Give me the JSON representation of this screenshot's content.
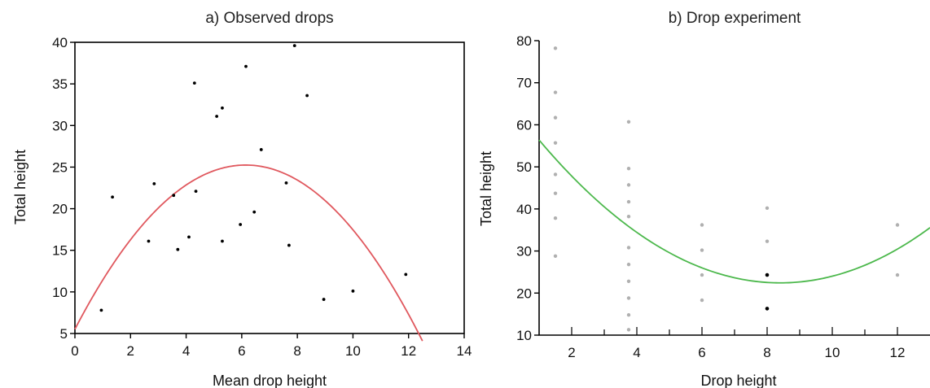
{
  "chart_data": [
    {
      "type": "scatter",
      "title": "a) Observed drops",
      "xlabel": "Mean drop height",
      "ylabel": "Total height",
      "xlim": [
        0,
        14
      ],
      "ylim": [
        5,
        40
      ],
      "xticks": [
        0,
        2,
        4,
        6,
        8,
        10,
        12,
        14
      ],
      "yticks": [
        5,
        10,
        15,
        20,
        25,
        30,
        35,
        40
      ],
      "grid": false,
      "point_color": "#000000",
      "points": [
        {
          "x": 0.95,
          "y": 7.8
        },
        {
          "x": 1.35,
          "y": 21.4
        },
        {
          "x": 2.65,
          "y": 16.1
        },
        {
          "x": 2.85,
          "y": 23.0
        },
        {
          "x": 3.55,
          "y": 21.6
        },
        {
          "x": 3.7,
          "y": 15.1
        },
        {
          "x": 4.1,
          "y": 16.6
        },
        {
          "x": 4.3,
          "y": 35.1
        },
        {
          "x": 4.35,
          "y": 22.1
        },
        {
          "x": 5.1,
          "y": 31.1
        },
        {
          "x": 5.3,
          "y": 32.1
        },
        {
          "x": 5.3,
          "y": 16.1
        },
        {
          "x": 5.95,
          "y": 18.1
        },
        {
          "x": 6.15,
          "y": 37.1
        },
        {
          "x": 6.45,
          "y": 19.6
        },
        {
          "x": 6.7,
          "y": 27.1
        },
        {
          "x": 7.6,
          "y": 23.1
        },
        {
          "x": 7.7,
          "y": 15.6
        },
        {
          "x": 7.9,
          "y": 39.6
        },
        {
          "x": 8.35,
          "y": 33.6
        },
        {
          "x": 8.95,
          "y": 9.1
        },
        {
          "x": 10.0,
          "y": 10.1
        },
        {
          "x": 11.9,
          "y": 12.1
        }
      ],
      "curve": {
        "color": "#e0585e",
        "quadratic": {
          "a": -0.523,
          "b": 6.424,
          "c": 5.52
        },
        "x_range": [
          0,
          12.5
        ]
      }
    },
    {
      "type": "scatter",
      "title": "b) Drop experiment",
      "xlabel": "Drop height",
      "ylabel": "Total height",
      "xlim": [
        1,
        13
      ],
      "ylim": [
        10,
        80
      ],
      "xticks": [
        2,
        4,
        6,
        8,
        10,
        12
      ],
      "yticks": [
        10,
        20,
        30,
        40,
        50,
        60,
        70,
        80
      ],
      "grid": true,
      "point_color": "#b0b0b0",
      "dark_point_color": "#000000",
      "points": [
        {
          "x": 1.5,
          "y": 78.2
        },
        {
          "x": 1.5,
          "y": 67.7
        },
        {
          "x": 1.5,
          "y": 61.7
        },
        {
          "x": 1.5,
          "y": 55.7
        },
        {
          "x": 1.5,
          "y": 48.2
        },
        {
          "x": 1.5,
          "y": 43.7
        },
        {
          "x": 1.5,
          "y": 37.8
        },
        {
          "x": 1.5,
          "y": 28.8
        },
        {
          "x": 3.75,
          "y": 60.7
        },
        {
          "x": 3.75,
          "y": 49.6
        },
        {
          "x": 3.75,
          "y": 45.7
        },
        {
          "x": 3.75,
          "y": 41.7
        },
        {
          "x": 3.75,
          "y": 38.2
        },
        {
          "x": 3.75,
          "y": 30.8
        },
        {
          "x": 3.75,
          "y": 26.8
        },
        {
          "x": 3.75,
          "y": 22.8
        },
        {
          "x": 3.75,
          "y": 18.8
        },
        {
          "x": 3.75,
          "y": 14.8
        },
        {
          "x": 3.75,
          "y": 11.3
        },
        {
          "x": 6,
          "y": 36.2
        },
        {
          "x": 6,
          "y": 30.2
        },
        {
          "x": 6,
          "y": 24.3
        },
        {
          "x": 6,
          "y": 18.3
        },
        {
          "x": 8,
          "y": 40.2
        },
        {
          "x": 8,
          "y": 32.3
        },
        {
          "x": 8,
          "y": 24.3,
          "dark": true
        },
        {
          "x": 8,
          "y": 16.3,
          "dark": true
        },
        {
          "x": 12,
          "y": 36.2
        },
        {
          "x": 12,
          "y": 24.3
        }
      ],
      "curve": {
        "color": "#4cb84c",
        "quadratic": {
          "a": 0.62,
          "b": -10.416,
          "c": 66.17
        },
        "x_range": [
          1,
          13
        ]
      }
    }
  ]
}
